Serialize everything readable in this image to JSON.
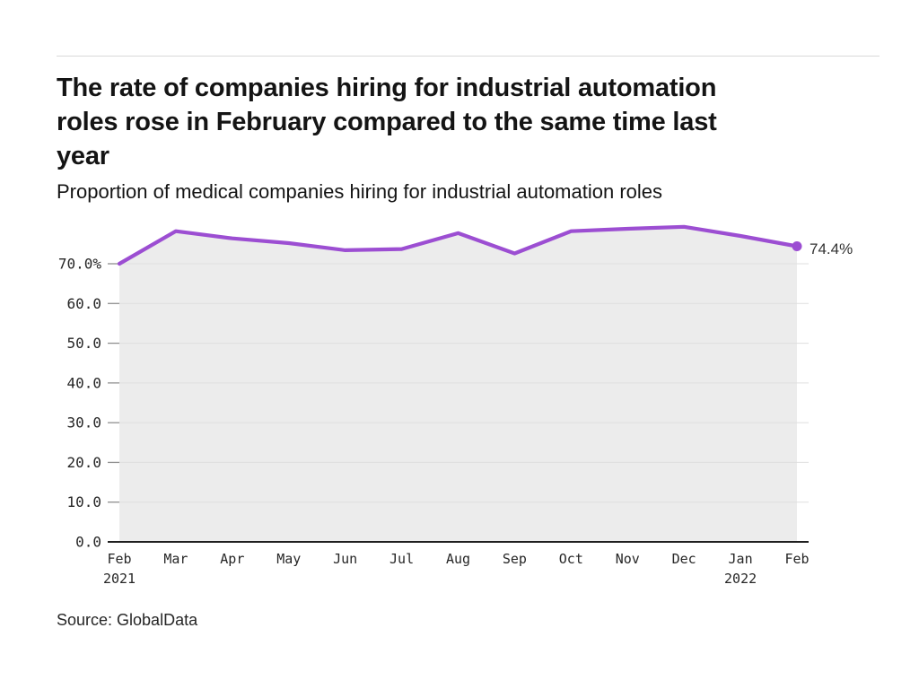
{
  "page": {
    "title": "The rate of companies hiring for industrial automation roles rose in February compared to the same time last year",
    "title_lines": [
      "The rate of companies hiring for industrial automation",
      "roles rose in February compared to the same time last",
      "year"
    ],
    "subtitle": "Proportion of medical companies hiring for industrial automation roles",
    "source": "Source: GlobalData"
  },
  "chart_data": {
    "type": "line",
    "title": "The rate of companies hiring for industrial automation roles rose in February compared to the same time last year",
    "subtitle": "Proportion of medical companies hiring for industrial automation roles",
    "categories": [
      "Feb",
      "Mar",
      "Apr",
      "May",
      "Jun",
      "Jul",
      "Aug",
      "Sep",
      "Oct",
      "Nov",
      "Dec",
      "Jan",
      "Feb"
    ],
    "year_markers": [
      {
        "index": 0,
        "year": "2021"
      },
      {
        "index": 11,
        "year": "2022"
      }
    ],
    "series": [
      {
        "name": "Proportion of medical companies hiring for industrial automation roles",
        "values": [
          70.0,
          78.2,
          76.4,
          75.2,
          73.4,
          73.7,
          77.7,
          72.6,
          78.2,
          78.8,
          79.3,
          77.0,
          74.4
        ]
      }
    ],
    "end_label": "74.4%",
    "xlabel": "",
    "ylabel": "",
    "y_ticks": {
      "values": [
        0,
        10,
        20,
        30,
        40,
        50,
        60,
        70
      ],
      "labels": [
        "0.0",
        "10.0",
        "20.0",
        "30.0",
        "40.0",
        "50.0",
        "60.0",
        "70.0%"
      ]
    },
    "ylim": [
      0,
      80
    ],
    "grid": true,
    "legend": "none",
    "colors": {
      "line": "#9c4ed2",
      "area_fill": "#ececec",
      "gridline": "#dfdfdf",
      "tick": "#8f8f8f",
      "axis_baseline": "#1f1f1f",
      "tick_label": "#262626",
      "end_label": "#333333"
    }
  }
}
